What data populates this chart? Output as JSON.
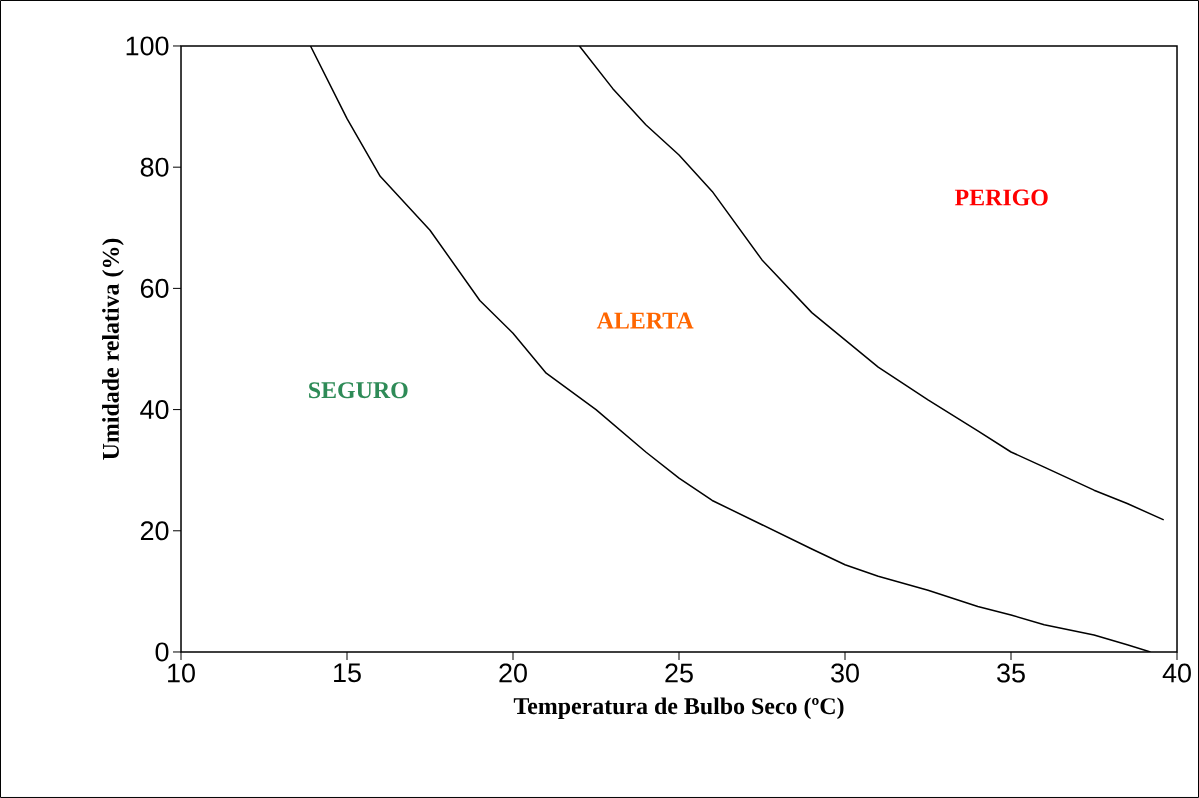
{
  "chart_data": {
    "type": "line",
    "xlabel": "Temperatura de Bulbo Seco (ºC)",
    "ylabel": "Umidade relativa (%)",
    "xlim": [
      10,
      40
    ],
    "ylim": [
      0,
      100
    ],
    "xticks": [
      10,
      15,
      20,
      25,
      30,
      35,
      40
    ],
    "yticks": [
      0,
      20,
      40,
      60,
      80,
      100
    ],
    "grid": false,
    "marker": "none",
    "line_style": "solid",
    "series": [
      {
        "color": "#000000",
        "x": [
          13.9,
          15,
          16,
          17.5,
          19,
          20,
          21,
          22.5,
          24,
          25,
          26,
          27.5,
          29,
          30,
          31,
          32.5,
          34,
          35,
          36,
          37.5,
          38.5,
          39.2
        ],
        "values": [
          100,
          88,
          78.5,
          69.6,
          58,
          52.6,
          46,
          40,
          33,
          28.7,
          25,
          21,
          17,
          14.4,
          12.5,
          10.2,
          7.5,
          6.1,
          4.5,
          2.8,
          1.2,
          0
        ]
      },
      {
        "color": "#000000",
        "x": [
          22,
          23,
          24,
          25,
          26,
          27.5,
          29,
          30,
          31,
          32.5,
          34,
          35,
          36,
          37.5,
          38.5,
          39.6
        ],
        "values": [
          100,
          93,
          87,
          82,
          76,
          64.7,
          56,
          51.5,
          47,
          41.6,
          36.5,
          33,
          30.5,
          26.7,
          24.5,
          21.8
        ]
      }
    ],
    "annotations": [
      "SEGURO",
      "ALERTA",
      "PERIGO"
    ]
  }
}
